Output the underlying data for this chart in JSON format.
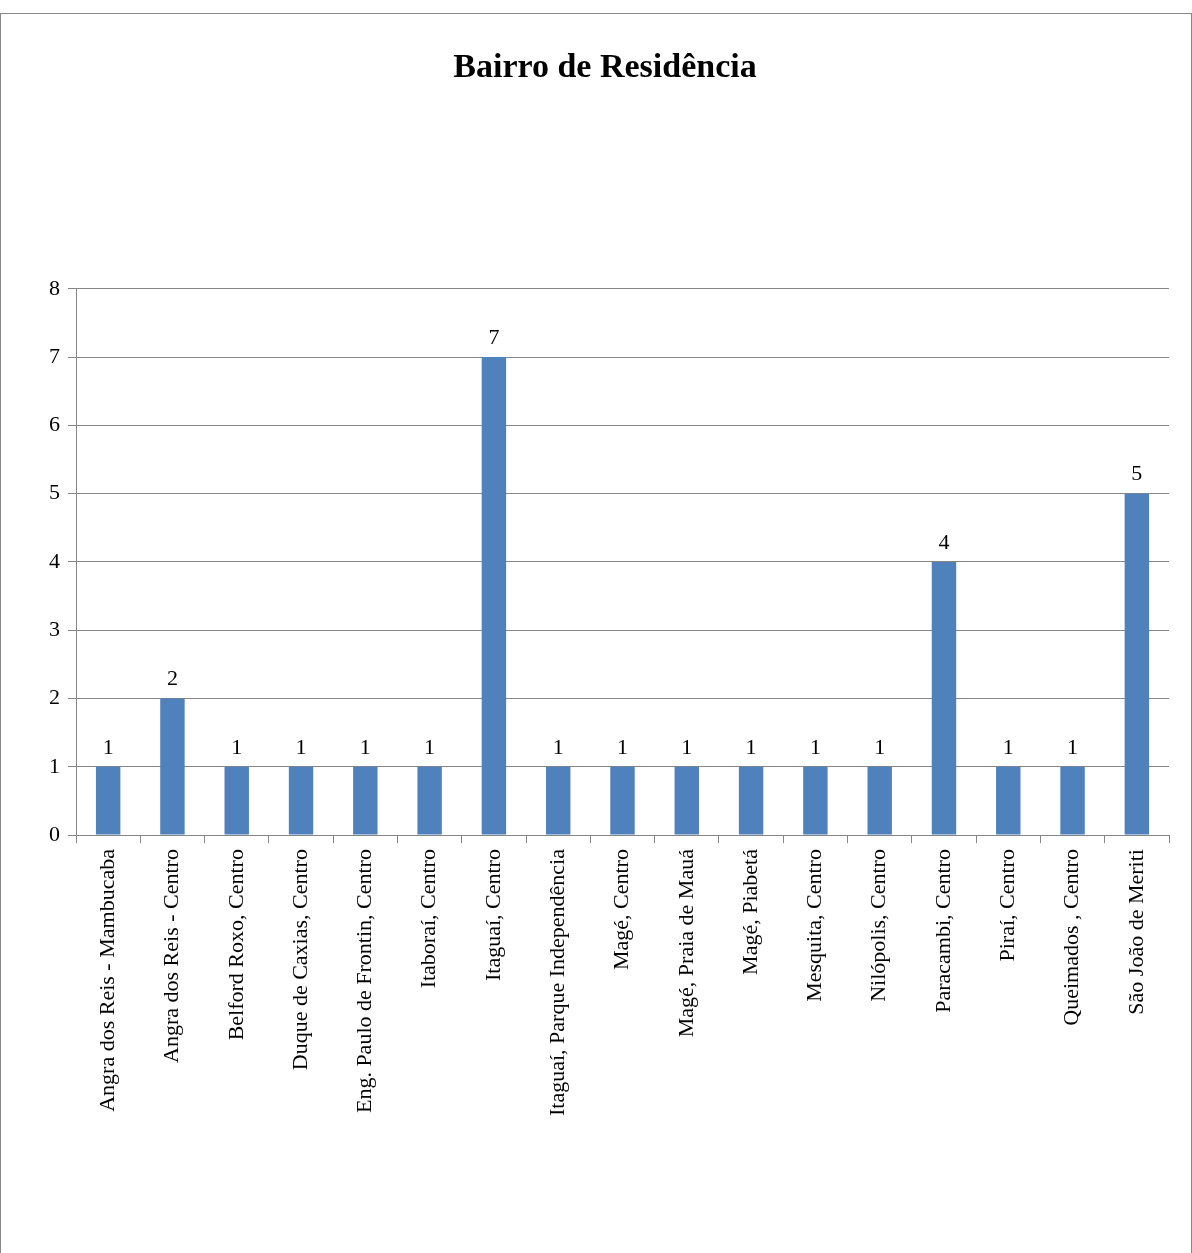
{
  "chart_data": {
    "type": "bar",
    "title": "Bairro de Residência",
    "categories": [
      "Angra dos Reis - Mambucaba",
      "Angra dos Reis - Centro",
      "Belford Roxo, Centro",
      "Duque de Caxias, Centro",
      "Eng. Paulo de Frontin, Centro",
      "Itaboraí, Centro",
      "Itaguaí, Centro",
      "Itaguaí, Parque Independência",
      "Magé, Centro",
      "Magé, Praia de Mauá",
      "Magé, Piabetá",
      "Mesquita, Centro",
      "Nilópolis, Centro",
      "Paracambi, Centro",
      "Piraí, Centro",
      "Queimados , Centro",
      "São João de Meriti"
    ],
    "values": [
      1,
      2,
      1,
      1,
      1,
      1,
      7,
      1,
      1,
      1,
      1,
      1,
      1,
      4,
      1,
      1,
      5
    ],
    "color": "#4f81bd",
    "ylim": [
      0,
      8
    ],
    "yticks": [
      0,
      1,
      2,
      3,
      4,
      5,
      6,
      7,
      8
    ],
    "grid": "y",
    "legend": false,
    "data_labels": true
  }
}
